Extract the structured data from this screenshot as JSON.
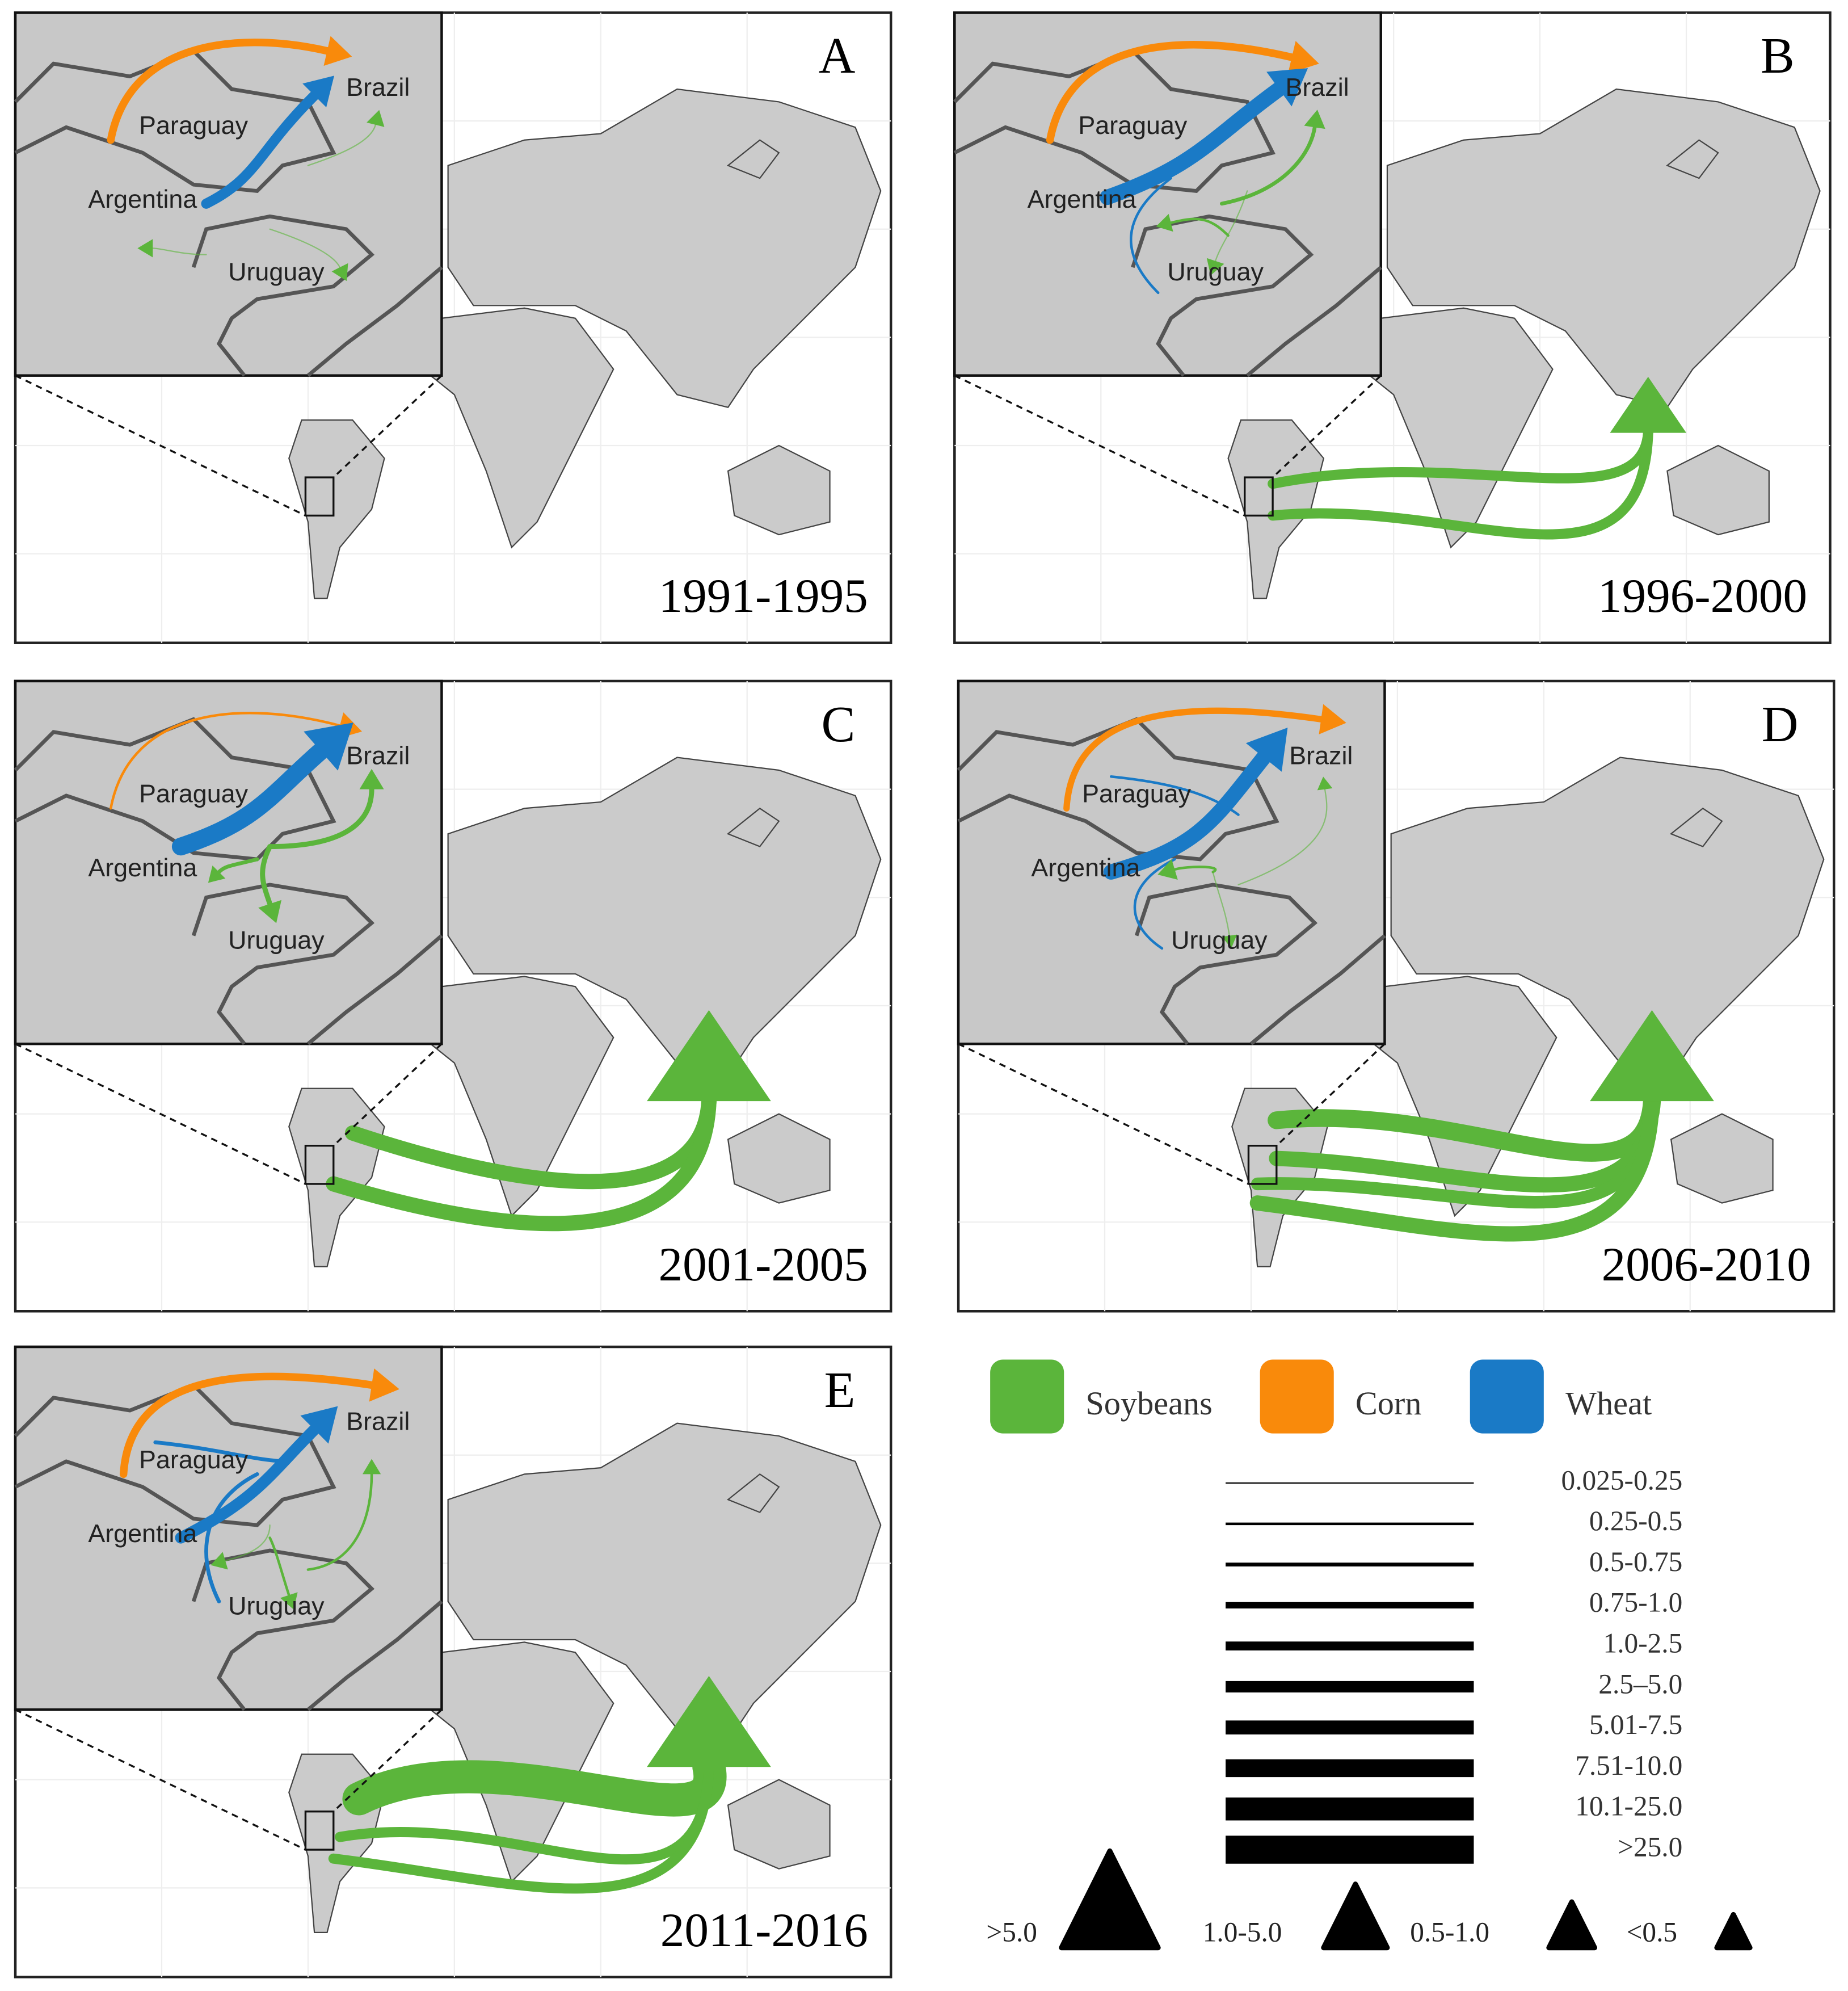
{
  "panels": [
    {
      "letter": "A",
      "period": "1991-1995",
      "countries": [
        "Paraguay",
        "Brazil",
        "Argentina",
        "Uruguay"
      ]
    },
    {
      "letter": "B",
      "period": "1996-2000",
      "countries": [
        "Paraguay",
        "Brazil",
        "Argentina",
        "Uruguay"
      ]
    },
    {
      "letter": "C",
      "period": "2001-2005",
      "countries": [
        "Paraguay",
        "Brazil",
        "Argentina",
        "Uruguay"
      ]
    },
    {
      "letter": "D",
      "period": "2006-2010",
      "countries": [
        "Paraguay",
        "Brazil",
        "Argentina",
        "Uruguay"
      ]
    },
    {
      "letter": "E",
      "period": "2011-2016",
      "countries": [
        "Paraguay",
        "Brazil",
        "Argentina",
        "Uruguay"
      ]
    }
  ],
  "legend": {
    "crops": [
      "Soybeans",
      "Corn",
      "Wheat"
    ],
    "line_classes": [
      "0.025-0.25",
      "0.25-0.5",
      "0.5-0.75",
      "0.75-1.0",
      "1.0-2.5",
      "2.5–5.0",
      "5.01-7.5",
      "7.51-10.0",
      "10.1-25.0",
      ">25.0"
    ],
    "triangle_classes": [
      ">5.0",
      "1.0-5.0",
      "0.5-1.0",
      "<0.5"
    ]
  }
}
